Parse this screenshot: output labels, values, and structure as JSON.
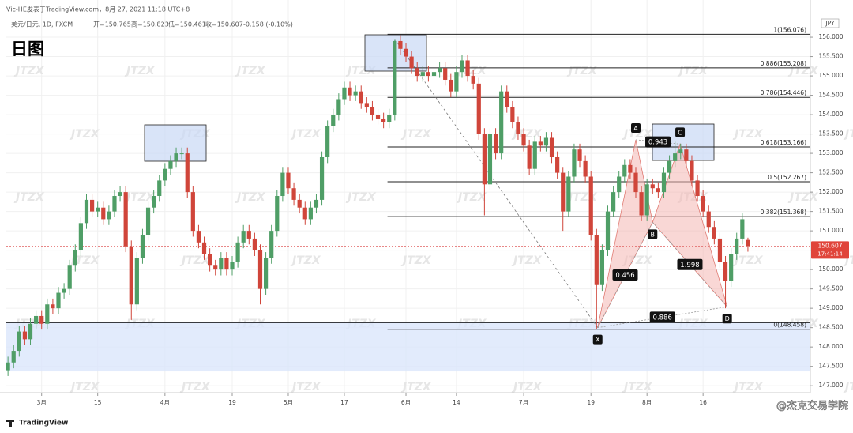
{
  "header": {
    "published": "Vic-HE发表于TradingView.com，8月 27, 2021 11:18 UTC+8",
    "symbol": "美元/日元, 1D, FXCM",
    "open": "开=150.765",
    "high": "高=150.823",
    "low": "低=150.461",
    "close": "收=150.607",
    "change": "-0.158 (-0.10%)",
    "timeframe": "日图",
    "currency": "JPY"
  },
  "watermark": "JTZX",
  "footer": {
    "logo": "TradingView",
    "credit": "@杰克交易学院"
  },
  "chart_data": {
    "type": "candlestick",
    "up_color": "#4f9e66",
    "down_color": "#d0453a",
    "grid": true,
    "xlim": [
      -0.3,
      143
    ],
    "ylim": [
      146.82,
      156.96
    ],
    "xticks": [
      {
        "value": 6,
        "label": "3月"
      },
      {
        "value": 16,
        "label": "15"
      },
      {
        "value": 28,
        "label": "4月"
      },
      {
        "value": 40,
        "label": "19"
      },
      {
        "value": 50,
        "label": "5月"
      },
      {
        "value": 60,
        "label": "17"
      },
      {
        "value": 71,
        "label": "6月"
      },
      {
        "value": 80,
        "label": "14"
      },
      {
        "value": 92,
        "label": "7月"
      },
      {
        "value": 104,
        "label": "19"
      },
      {
        "value": 114,
        "label": "8月"
      },
      {
        "value": 124,
        "label": "16"
      }
    ],
    "yticks": [
      {
        "value": 147,
        "label": "147.000"
      },
      {
        "value": 147.5,
        "label": "147.500"
      },
      {
        "value": 148,
        "label": "148.000"
      },
      {
        "value": 148.5,
        "label": "148.500"
      },
      {
        "value": 149,
        "label": "149.000"
      },
      {
        "value": 149.5,
        "label": "149.500"
      },
      {
        "value": 150,
        "label": "150.000"
      },
      {
        "value": 150.5,
        "label": "150.500"
      },
      {
        "value": 151,
        "label": "151.000"
      },
      {
        "value": 151.5,
        "label": "151.500"
      },
      {
        "value": 152,
        "label": "152.000"
      },
      {
        "value": 152.5,
        "label": "152.500"
      },
      {
        "value": 153,
        "label": "153.000"
      },
      {
        "value": 153.5,
        "label": "153.500"
      },
      {
        "value": 154,
        "label": "154.000"
      },
      {
        "value": 154.5,
        "label": "154.500"
      },
      {
        "value": 155,
        "label": "155.000"
      },
      {
        "value": 155.5,
        "label": "155.500"
      },
      {
        "value": 156,
        "label": "156.000"
      }
    ],
    "last_price": {
      "value": 150.607,
      "label": "150.607",
      "countdown": "17:41:14"
    },
    "zone": [
      147.37,
      148.63
    ],
    "fib_start": 67.7,
    "fib_levels": [
      {
        "value": 156.076,
        "label": "1(156.076)"
      },
      {
        "value": 155.208,
        "label": "0.886(155.208)"
      },
      {
        "value": 154.446,
        "label": "0.786(154.446)"
      },
      {
        "value": 153.166,
        "label": "0.618(153.166)"
      },
      {
        "value": 152.267,
        "label": "0.5(152.267)"
      },
      {
        "value": 151.368,
        "label": "0.382(151.368)"
      },
      {
        "value": 148.458,
        "label": "0(148.458)"
      }
    ],
    "pattern": {
      "points": [
        {
          "label": "X",
          "x": 105.2,
          "y": 148.5
        },
        {
          "label": "A",
          "x": 112,
          "y": 153.35
        },
        {
          "label": "B",
          "x": 115,
          "y": 151.22
        },
        {
          "label": "C",
          "x": 119.9,
          "y": 153.24
        },
        {
          "label": "D",
          "x": 128.3,
          "y": 149.04
        }
      ],
      "ratios": [
        "0.456",
        "0.943",
        "1.998",
        "0.886"
      ]
    },
    "ohlc": [
      [
        147.4,
        147.75,
        147.25,
        147.6
      ],
      [
        147.6,
        148.05,
        147.45,
        147.9
      ],
      [
        147.9,
        148.55,
        147.75,
        148.4
      ],
      [
        148.4,
        148.55,
        148.05,
        148.2
      ],
      [
        148.2,
        148.75,
        148.05,
        148.6
      ],
      [
        148.6,
        148.95,
        148.45,
        148.8
      ],
      [
        148.8,
        148.95,
        148.45,
        148.6
      ],
      [
        148.6,
        149.25,
        148.45,
        149.1
      ],
      [
        149.1,
        149.25,
        148.85,
        149.0
      ],
      [
        149.0,
        149.55,
        148.85,
        149.4
      ],
      [
        149.4,
        149.65,
        149.25,
        149.5
      ],
      [
        149.5,
        150.25,
        149.35,
        150.1
      ],
      [
        150.1,
        150.65,
        149.95,
        150.5
      ],
      [
        150.5,
        151.35,
        150.35,
        151.2
      ],
      [
        151.2,
        151.95,
        151.05,
        151.8
      ],
      [
        151.8,
        151.95,
        151.35,
        151.5
      ],
      [
        151.5,
        151.75,
        151.35,
        151.6
      ],
      [
        151.6,
        151.75,
        151.15,
        151.3
      ],
      [
        151.3,
        151.65,
        151.15,
        151.5
      ],
      [
        151.5,
        152.05,
        151.35,
        151.9
      ],
      [
        151.9,
        152.15,
        151.75,
        152.0
      ],
      [
        152.0,
        152.15,
        150.45,
        150.6
      ],
      [
        150.6,
        150.75,
        148.7,
        149.1
      ],
      [
        149.1,
        150.45,
        148.95,
        150.3
      ],
      [
        150.3,
        151.05,
        150.15,
        150.9
      ],
      [
        150.9,
        151.75,
        150.75,
        151.6
      ],
      [
        151.6,
        152.05,
        151.45,
        151.9
      ],
      [
        151.9,
        152.45,
        151.75,
        152.3
      ],
      [
        152.3,
        152.75,
        152.15,
        152.6
      ],
      [
        152.6,
        152.95,
        152.45,
        152.8
      ],
      [
        152.8,
        153.15,
        152.65,
        153.0
      ],
      [
        153.0,
        153.15,
        152.85,
        153.0
      ],
      [
        153.0,
        153.15,
        151.85,
        152.0
      ],
      [
        152.0,
        152.15,
        150.85,
        151.0
      ],
      [
        151.0,
        151.15,
        150.55,
        150.7
      ],
      [
        150.7,
        150.85,
        150.25,
        150.4
      ],
      [
        150.4,
        150.55,
        149.95,
        150.1
      ],
      [
        150.1,
        150.25,
        149.85,
        150.0
      ],
      [
        150.0,
        150.45,
        149.85,
        150.3
      ],
      [
        150.3,
        150.45,
        149.85,
        150.0
      ],
      [
        150.0,
        150.35,
        149.85,
        150.2
      ],
      [
        150.2,
        150.85,
        150.05,
        150.7
      ],
      [
        150.7,
        151.15,
        150.55,
        151.0
      ],
      [
        151.0,
        151.15,
        150.65,
        150.8
      ],
      [
        150.8,
        150.95,
        150.35,
        150.5
      ],
      [
        150.5,
        150.65,
        149.1,
        149.5
      ],
      [
        149.5,
        150.45,
        149.35,
        150.3
      ],
      [
        150.3,
        151.15,
        150.15,
        151.0
      ],
      [
        151.0,
        152.05,
        150.85,
        151.9
      ],
      [
        151.9,
        152.65,
        151.75,
        152.5
      ],
      [
        152.5,
        152.65,
        151.95,
        152.1
      ],
      [
        152.1,
        152.25,
        151.65,
        151.8
      ],
      [
        151.8,
        151.95,
        151.45,
        151.6
      ],
      [
        151.6,
        151.75,
        151.15,
        151.3
      ],
      [
        151.3,
        151.75,
        151.15,
        151.6
      ],
      [
        151.6,
        151.95,
        151.45,
        151.8
      ],
      [
        151.8,
        153.05,
        151.65,
        152.9
      ],
      [
        152.9,
        153.85,
        152.75,
        153.7
      ],
      [
        153.7,
        154.15,
        153.55,
        154.0
      ],
      [
        154.0,
        154.55,
        153.85,
        154.4
      ],
      [
        154.4,
        154.85,
        154.25,
        154.7
      ],
      [
        154.7,
        154.85,
        154.35,
        154.5
      ],
      [
        154.5,
        154.75,
        154.35,
        154.6
      ],
      [
        154.6,
        154.75,
        154.15,
        154.3
      ],
      [
        154.3,
        154.45,
        154.05,
        154.2
      ],
      [
        154.2,
        154.35,
        153.85,
        154.0
      ],
      [
        154.0,
        154.15,
        153.75,
        153.9
      ],
      [
        153.9,
        154.05,
        153.65,
        153.8
      ],
      [
        153.8,
        154.15,
        153.65,
        154.0
      ],
      [
        154.0,
        155.95,
        153.85,
        155.9
      ],
      [
        155.9,
        156.05,
        155.55,
        155.7
      ],
      [
        155.7,
        155.85,
        155.35,
        155.5
      ],
      [
        155.5,
        155.65,
        155.05,
        155.2
      ],
      [
        155.2,
        155.35,
        154.85,
        155.0
      ],
      [
        155.0,
        155.25,
        154.85,
        155.1
      ],
      [
        155.1,
        155.25,
        154.85,
        155.0
      ],
      [
        155.0,
        155.25,
        154.85,
        155.1
      ],
      [
        155.1,
        155.35,
        154.95,
        155.2
      ],
      [
        155.2,
        155.35,
        154.75,
        154.9
      ],
      [
        154.9,
        155.05,
        154.45,
        154.6
      ],
      [
        154.6,
        155.25,
        154.45,
        155.1
      ],
      [
        155.1,
        155.55,
        154.95,
        155.4
      ],
      [
        155.4,
        155.55,
        154.85,
        155.0
      ],
      [
        155.0,
        155.15,
        154.65,
        154.8
      ],
      [
        154.8,
        154.95,
        153.35,
        153.5
      ],
      [
        153.5,
        153.65,
        151.4,
        152.2
      ],
      [
        152.2,
        153.65,
        152.05,
        153.5
      ],
      [
        153.5,
        153.65,
        152.85,
        153.0
      ],
      [
        153.0,
        154.75,
        152.85,
        154.6
      ],
      [
        154.6,
        154.75,
        154.05,
        154.2
      ],
      [
        154.2,
        154.35,
        153.65,
        153.8
      ],
      [
        153.8,
        153.95,
        153.35,
        153.5
      ],
      [
        153.5,
        153.65,
        153.05,
        153.2
      ],
      [
        153.2,
        153.35,
        152.45,
        152.6
      ],
      [
        152.6,
        153.45,
        152.45,
        153.3
      ],
      [
        153.3,
        153.45,
        153.05,
        153.2
      ],
      [
        153.2,
        153.55,
        153.05,
        153.4
      ],
      [
        153.4,
        153.55,
        152.75,
        152.9
      ],
      [
        152.9,
        153.05,
        152.35,
        152.5
      ],
      [
        152.5,
        152.65,
        151.0,
        151.5
      ],
      [
        151.5,
        152.55,
        151.35,
        152.4
      ],
      [
        152.4,
        153.25,
        152.25,
        153.1
      ],
      [
        153.1,
        153.25,
        152.65,
        152.8
      ],
      [
        152.8,
        152.95,
        152.25,
        152.4
      ],
      [
        152.4,
        152.55,
        150.75,
        150.9
      ],
      [
        150.9,
        151.05,
        148.46,
        149.6
      ],
      [
        149.6,
        150.65,
        149.45,
        150.5
      ],
      [
        150.5,
        151.65,
        150.35,
        151.5
      ],
      [
        151.5,
        152.15,
        151.35,
        152.0
      ],
      [
        152.0,
        152.55,
        151.85,
        152.4
      ],
      [
        152.4,
        152.85,
        152.25,
        152.7
      ],
      [
        152.7,
        152.85,
        152.35,
        152.5
      ],
      [
        152.5,
        152.65,
        151.85,
        152.0
      ],
      [
        152.0,
        152.15,
        151.25,
        151.4
      ],
      [
        151.4,
        152.35,
        151.25,
        152.2
      ],
      [
        152.2,
        152.35,
        151.95,
        152.1
      ],
      [
        152.1,
        152.25,
        151.85,
        152.0
      ],
      [
        152.0,
        152.65,
        151.85,
        152.5
      ],
      [
        152.5,
        152.95,
        152.35,
        152.8
      ],
      [
        152.8,
        153.3,
        152.65,
        153.0
      ],
      [
        153.0,
        153.25,
        152.85,
        153.1
      ],
      [
        153.1,
        153.25,
        152.65,
        152.8
      ],
      [
        152.8,
        152.95,
        152.15,
        152.3
      ],
      [
        152.3,
        152.45,
        151.75,
        151.9
      ],
      [
        151.9,
        152.05,
        151.35,
        151.5
      ],
      [
        151.5,
        151.65,
        150.95,
        151.1
      ],
      [
        151.1,
        151.25,
        150.65,
        150.8
      ],
      [
        150.8,
        150.95,
        150.05,
        150.2
      ],
      [
        150.2,
        150.35,
        149.0,
        149.7
      ],
      [
        149.7,
        150.55,
        149.55,
        150.4
      ],
      [
        150.4,
        150.95,
        150.25,
        150.8
      ],
      [
        150.8,
        151.45,
        150.65,
        151.3
      ],
      [
        150.765,
        150.823,
        150.461,
        150.607
      ]
    ]
  }
}
